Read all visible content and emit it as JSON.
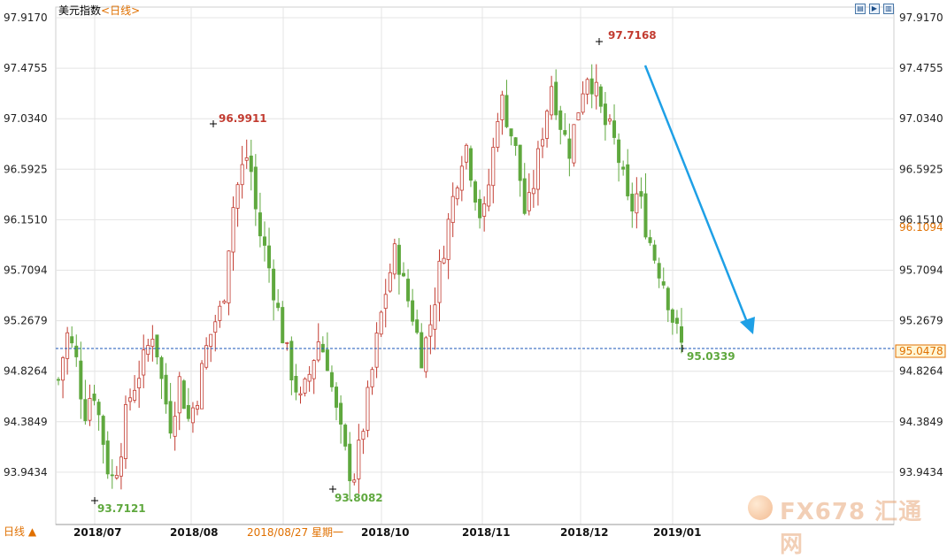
{
  "title": {
    "name": "美元指数",
    "period": "<日线>"
  },
  "period_tab": "日线 ▲",
  "crosshair_label": "2018/08/27 星期一",
  "watermark": {
    "brand": "FX678",
    "cn": "汇通网"
  },
  "colors": {
    "up": "#c23b30",
    "down": "#5fa83e",
    "grid": "#e4e4e4",
    "arrow": "#1ea0e6",
    "ref_line": "#1a56b8",
    "price_tag": "#e07000"
  },
  "chart_data": {
    "type": "candlestick",
    "title": "美元指数",
    "y_ticks": [
      "97.9170",
      "97.4755",
      "97.0340",
      "96.5925",
      "96.1510",
      "95.7094",
      "95.2679",
      "94.8264",
      "94.3849",
      "93.9434"
    ],
    "ylim": [
      93.5,
      97.917
    ],
    "x_ticks": [
      "2018/07",
      "2018/08",
      "2018/09",
      "2018/10",
      "2018/11",
      "2018/12",
      "2019/01"
    ],
    "annotations": [
      {
        "label": "96.9911",
        "type": "high"
      },
      {
        "label": "97.7168",
        "type": "high"
      },
      {
        "label": "93.7121",
        "type": "low"
      },
      {
        "label": "93.8082",
        "type": "low"
      },
      {
        "label": "95.0339",
        "type": "last"
      }
    ],
    "price_tags": [
      "96.1094",
      "95.0478"
    ],
    "current_price": 95.0478,
    "close_path": [
      94.75,
      95.15,
      94.95,
      94.45,
      94.7,
      94.3,
      93.85,
      94.05,
      94.55,
      94.75,
      94.95,
      95.2,
      94.7,
      94.35,
      94.75,
      94.4,
      94.6,
      95.0,
      95.25,
      95.4,
      96.2,
      96.55,
      96.75,
      96.1,
      95.85,
      95.5,
      95.1,
      94.8,
      94.55,
      94.8,
      95.1,
      94.95,
      94.5,
      94.15,
      93.85,
      94.25,
      94.7,
      95.2,
      95.6,
      95.9,
      95.55,
      95.3,
      94.95,
      95.25,
      95.7,
      96.1,
      96.5,
      96.85,
      96.45,
      96.1,
      96.6,
      97.25,
      97.0,
      96.7,
      96.15,
      96.5,
      96.95,
      97.35,
      97.0,
      96.75,
      97.1,
      97.45,
      97.3,
      97.0,
      96.9,
      96.6,
      96.2,
      96.4,
      96.05,
      95.8,
      95.6,
      95.28,
      95.05
    ],
    "arrow": "downtrend arrow from Dec high toward 95.0"
  }
}
